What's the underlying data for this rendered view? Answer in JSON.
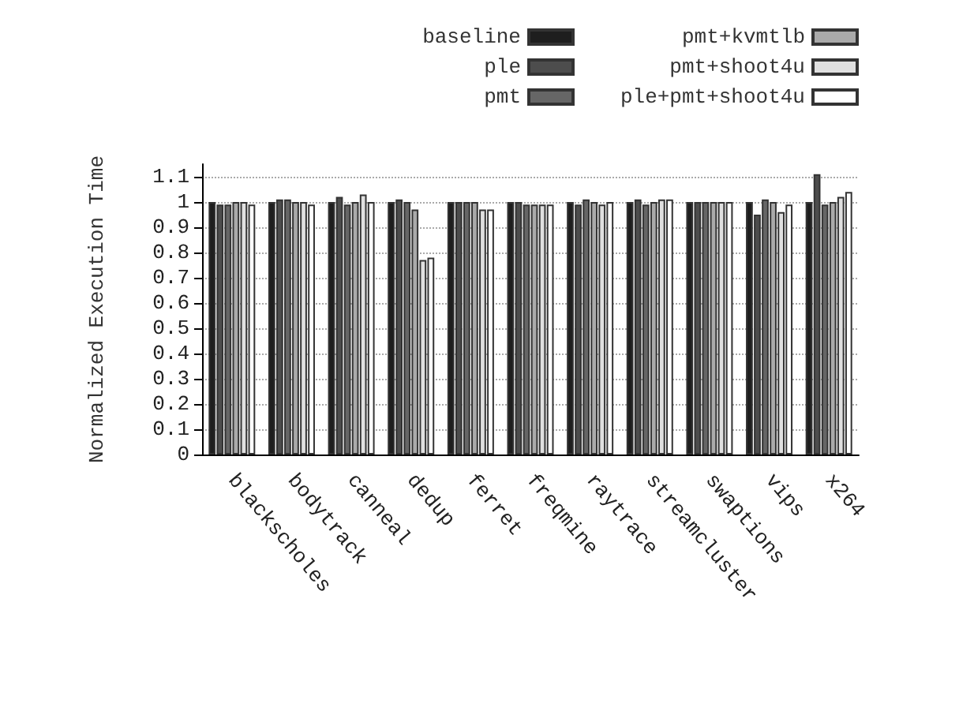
{
  "chart_data": {
    "type": "bar",
    "ylabel": "Normalized Execution Time",
    "categories": [
      "blackscholes",
      "bodytrack",
      "canneal",
      "dedup",
      "ferret",
      "freqmine",
      "raytrace",
      "streamcluster",
      "swaptions",
      "vips",
      "x264"
    ],
    "series": [
      {
        "name": "baseline",
        "color": "#1e1e1e",
        "values": [
          1,
          1,
          1,
          1,
          1,
          1,
          1,
          1,
          1,
          1,
          1
        ]
      },
      {
        "name": "ple",
        "color": "#4d4d4d",
        "values": [
          0.99,
          1.01,
          1.02,
          1.01,
          1,
          1,
          0.99,
          1.01,
          1,
          0.95,
          1.11
        ]
      },
      {
        "name": "pmt",
        "color": "#666666",
        "values": [
          0.99,
          1.01,
          0.99,
          1,
          1,
          0.99,
          1.01,
          0.99,
          1,
          1.01,
          0.99
        ]
      },
      {
        "name": "pmt+kvmtlb",
        "color": "#aaaaaa",
        "values": [
          1,
          1,
          1,
          0.97,
          1,
          0.99,
          1,
          1,
          1,
          1,
          1
        ]
      },
      {
        "name": "pmt+shoot4u",
        "color": "#e0e0e0",
        "values": [
          1,
          1,
          1.03,
          0.77,
          0.97,
          0.99,
          0.99,
          1.01,
          1,
          0.96,
          1.02
        ]
      },
      {
        "name": "ple+pmt+shoot4u",
        "color": "#ffffff",
        "values": [
          0.99,
          0.99,
          1,
          0.78,
          0.97,
          0.99,
          1,
          1.01,
          1,
          0.99,
          1.04
        ]
      }
    ],
    "ylim": [
      0,
      1.15
    ],
    "yticks": [
      0,
      0.1,
      0.2,
      0.3,
      0.4,
      0.5,
      0.6,
      0.7,
      0.8,
      0.9,
      1,
      1.1
    ],
    "grid": "y",
    "legend": "top right"
  }
}
